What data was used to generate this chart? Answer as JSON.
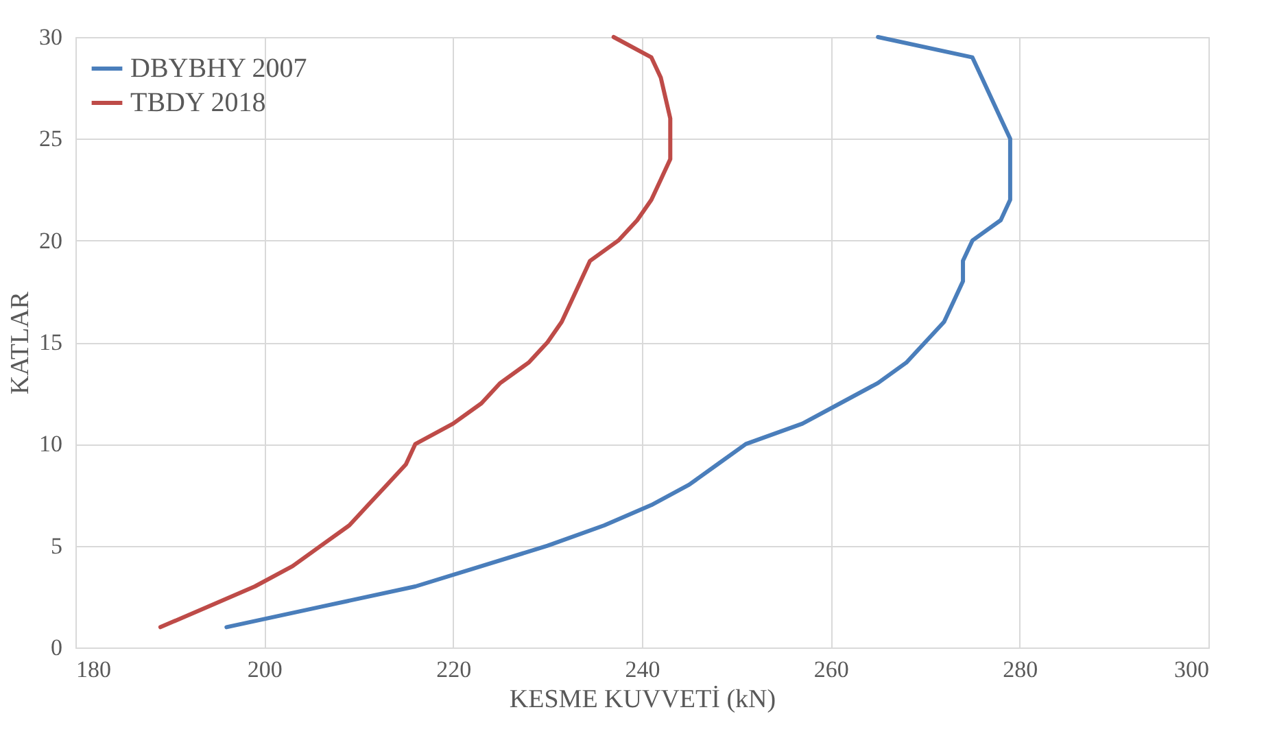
{
  "chart_data": {
    "type": "line",
    "xlabel": "KESME KUVVETİ (kN)",
    "ylabel": "KATLAR",
    "xlim": [
      180,
      300
    ],
    "xticks": [
      180,
      200,
      220,
      240,
      260,
      280,
      300
    ],
    "ylim": [
      0,
      30
    ],
    "yticks": [
      0,
      5,
      10,
      15,
      20,
      25,
      30
    ],
    "grid": true,
    "legend": "top left",
    "marker": "none",
    "line_style": "solid",
    "series": [
      {
        "name": "DBYBHY 2007",
        "color": "#4a7ebb",
        "values": [
          1,
          2,
          3,
          4,
          5,
          6,
          7,
          8,
          9,
          10,
          11,
          12,
          13,
          14,
          15,
          16,
          17,
          18,
          19,
          20,
          21,
          22,
          23,
          24,
          25,
          26,
          27,
          28,
          29,
          30
        ],
        "x": [
          196,
          206,
          216,
          223,
          230,
          236,
          241,
          245,
          248,
          251,
          257,
          261,
          265,
          268,
          270,
          272,
          273,
          274,
          274,
          275,
          278,
          279,
          279,
          279,
          279,
          278,
          277,
          276,
          275,
          265
        ]
      },
      {
        "name": "TBDY 2018",
        "color": "#be4b48",
        "values": [
          1,
          2,
          3,
          4,
          5,
          6,
          7,
          8,
          9,
          10,
          11,
          12,
          13,
          14,
          15,
          16,
          17,
          18,
          19,
          20,
          21,
          22,
          23,
          24,
          25,
          26,
          27,
          28,
          29,
          30
        ],
        "x": [
          189,
          194,
          199,
          203,
          206,
          209,
          211,
          213,
          215,
          216,
          220,
          223,
          225,
          228,
          230,
          231.5,
          232.5,
          233.5,
          234.5,
          237.5,
          239.5,
          241,
          242,
          243,
          243,
          243,
          242.5,
          242,
          241,
          237
        ]
      }
    ]
  }
}
